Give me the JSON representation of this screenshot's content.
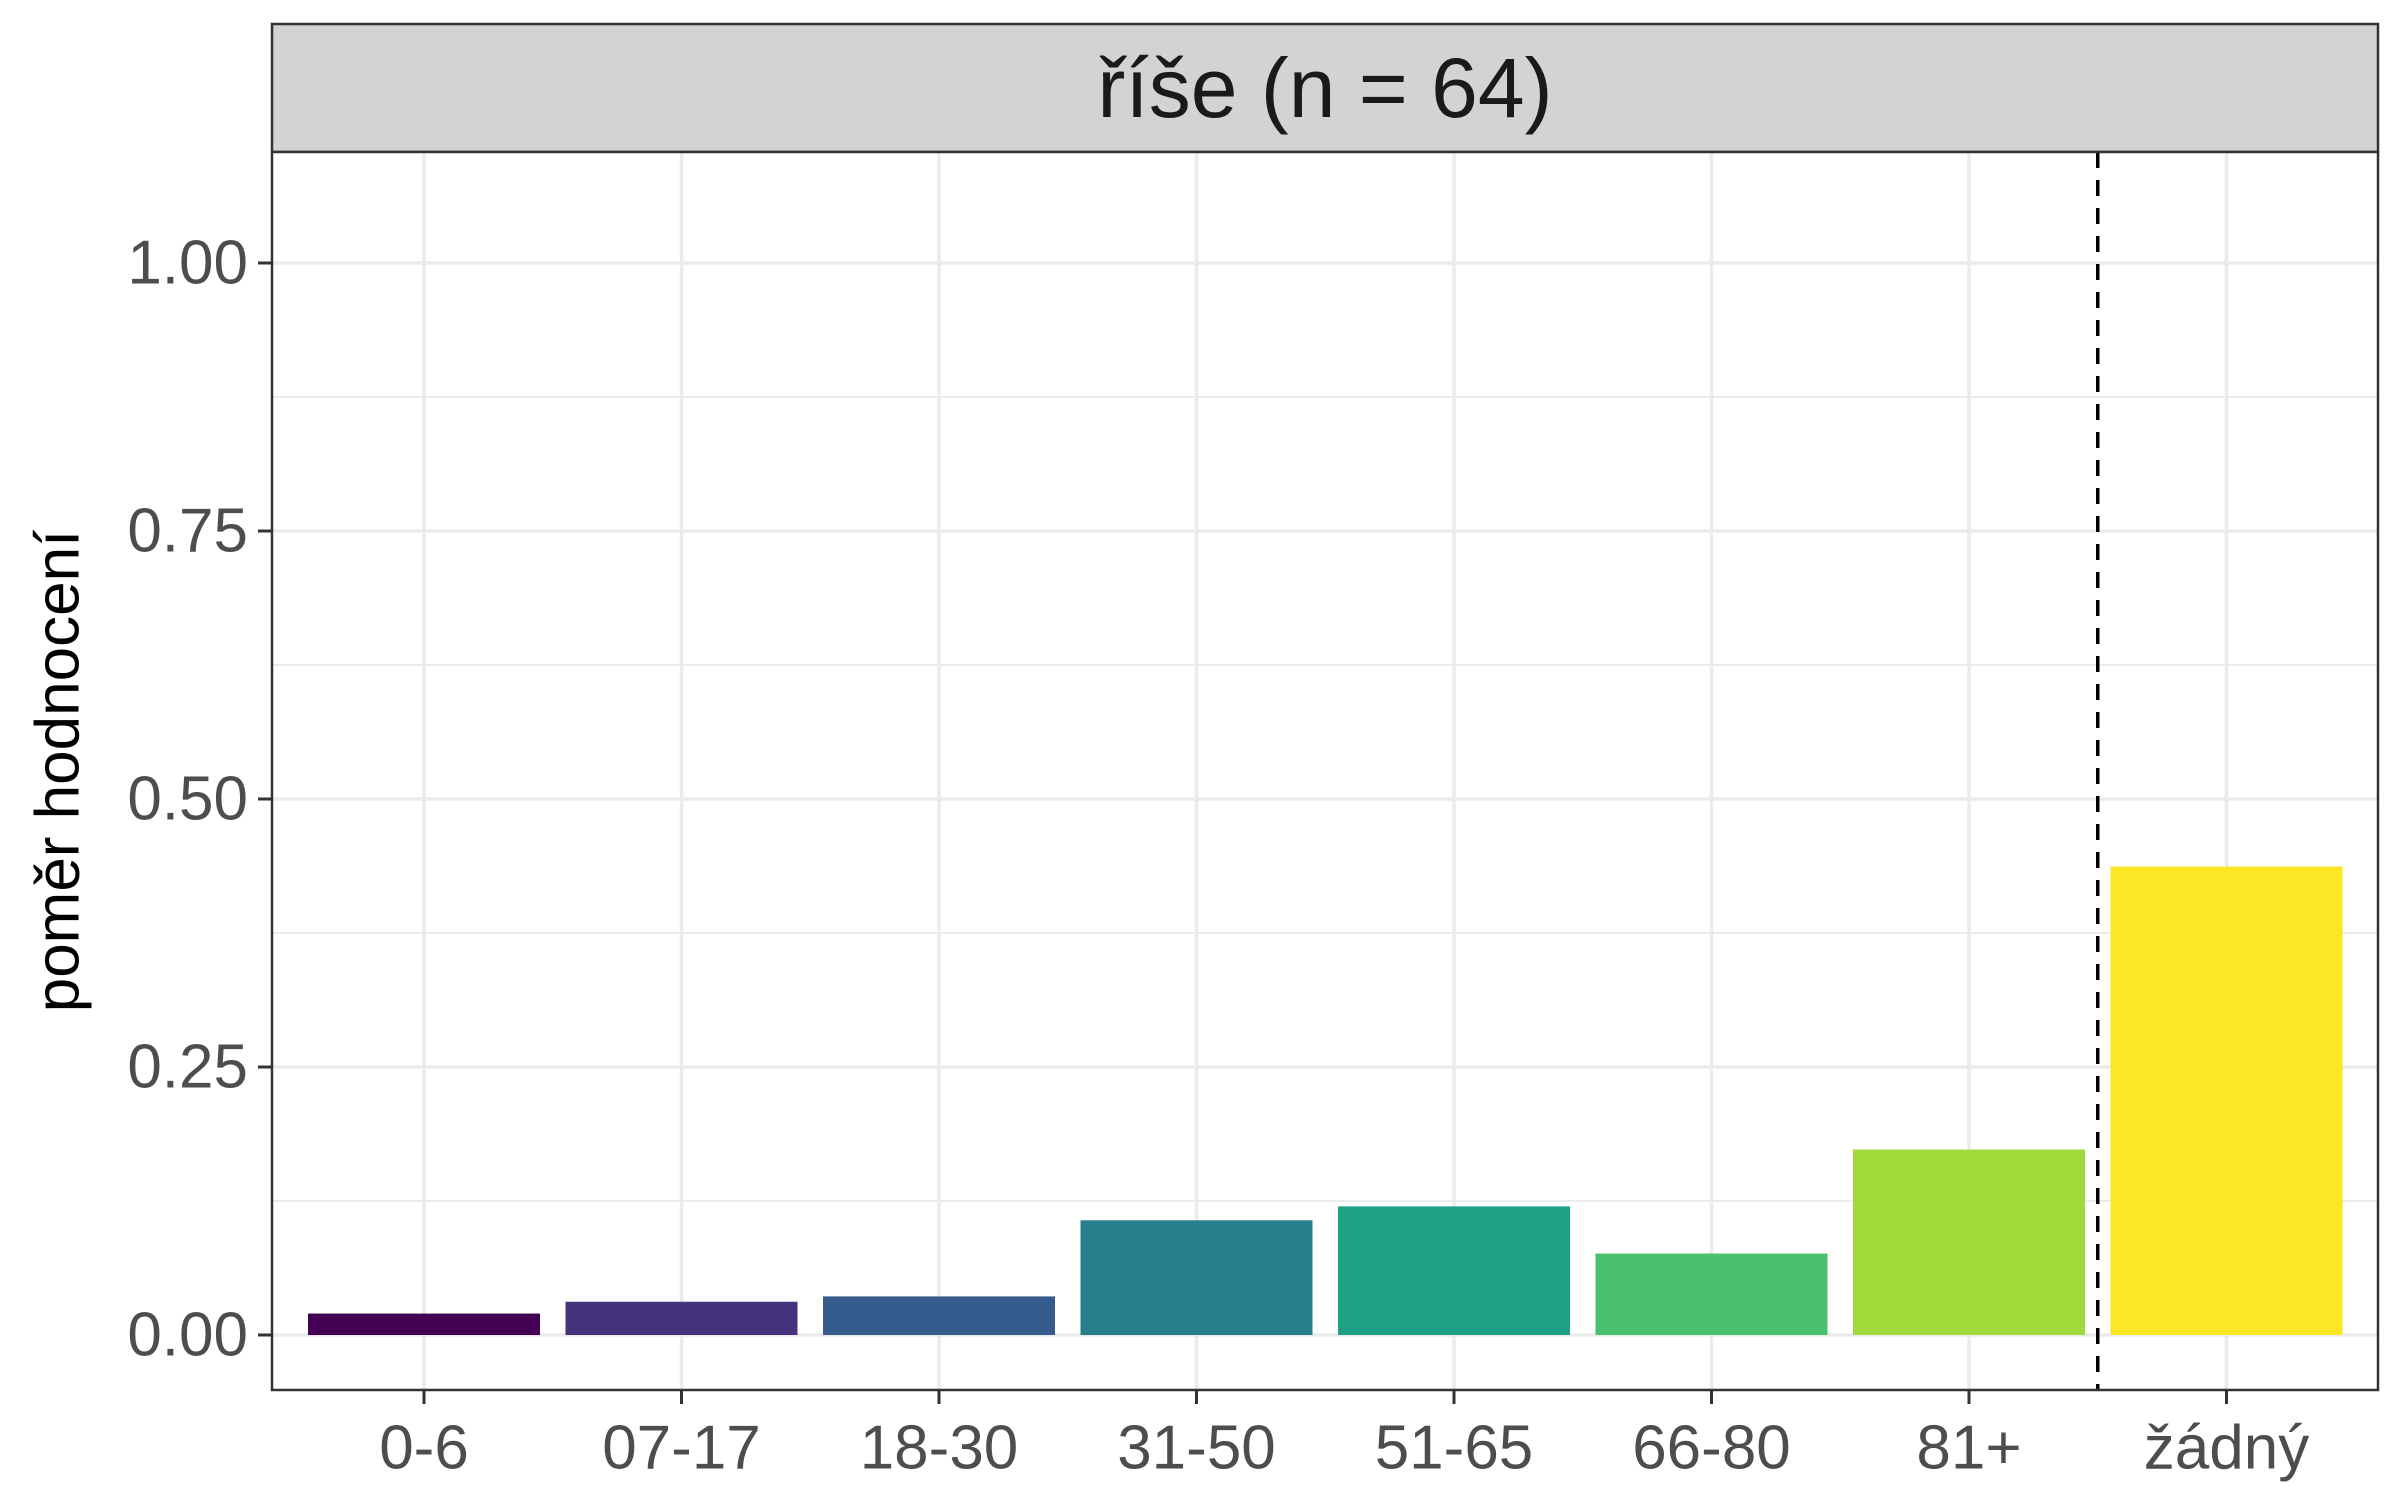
{
  "chart_data": {
    "type": "bar",
    "facet_title": "říše (n = 64)",
    "xlabel": "",
    "ylabel": "poměr hodnocení",
    "categories": [
      "0-6",
      "07-17",
      "18-30",
      "31-50",
      "51-65",
      "66-80",
      "81+",
      "žádný"
    ],
    "values": [
      0.02,
      0.031,
      0.036,
      0.107,
      0.12,
      0.076,
      0.173,
      0.437
    ],
    "colors": [
      "#440154",
      "#46337E",
      "#365C8D",
      "#277F8E",
      "#1FA187",
      "#4AC16D",
      "#9FDA3A",
      "#FDE725"
    ],
    "ylim": [
      -0.05,
      1.1
    ],
    "yticks": [
      0.0,
      0.25,
      0.5,
      0.75,
      1.0
    ],
    "ytick_labels": [
      "0.00",
      "0.25",
      "0.50",
      "0.75",
      "1.00"
    ],
    "reference_line": {
      "between": [
        "81+",
        "žádný"
      ],
      "style": "dashed"
    },
    "grid": true,
    "legend": "none"
  }
}
